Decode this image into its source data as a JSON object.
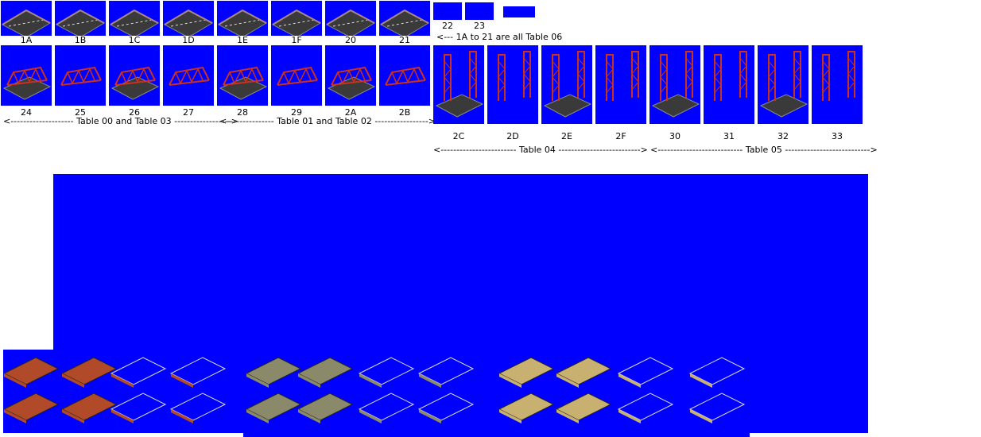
{
  "colors": {
    "sprite_bg": "#0000ff",
    "girder": "#c8321e",
    "road": "#3a3a3a"
  },
  "row1": {
    "labels": [
      "1A",
      "1B",
      "1C",
      "1D",
      "1E",
      "1F",
      "20",
      "21"
    ],
    "small_labels": [
      "22",
      "23"
    ],
    "note": "<--- 1A  to  21 are all Table 06"
  },
  "row2": {
    "labels": [
      "24",
      "25",
      "26",
      "27",
      "28",
      "29",
      "2A",
      "2B"
    ],
    "table_a": "<-------------------- Table 00 and Table 03 ------------------>",
    "table_b": "<--------------- Table 01 and Table 02 ----------------->"
  },
  "row3": {
    "labels": [
      "2C",
      "2D",
      "2E",
      "2F",
      "30",
      "31",
      "32",
      "33"
    ],
    "table_a": "<------------------------ Table 04 -------------------------->",
    "table_b": "<--------------------------- Table 05 --------------------------->"
  }
}
